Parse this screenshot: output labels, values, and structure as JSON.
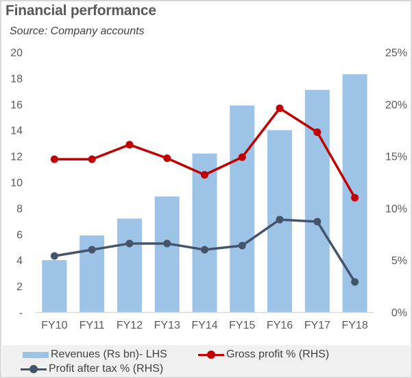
{
  "chart_data": {
    "type": "bar+line",
    "title": "Financial performance",
    "subtitle": "Source: Company accounts",
    "categories": [
      "FY10",
      "FY11",
      "FY12",
      "FY13",
      "FY14",
      "FY15",
      "FY16",
      "FY17",
      "FY18"
    ],
    "series": [
      {
        "name": "Revenues (Rs bn)- LHS",
        "type": "bar",
        "axis": "left",
        "color": "#9dc3e6",
        "values": [
          4.0,
          5.9,
          7.2,
          8.9,
          12.2,
          15.9,
          14.0,
          17.1,
          18.3
        ]
      },
      {
        "name": "Gross profit % (RHS)",
        "type": "line",
        "axis": "right",
        "color": "#c00000",
        "values": [
          14.7,
          14.7,
          16.1,
          14.8,
          13.2,
          14.9,
          19.6,
          17.3,
          11.0
        ]
      },
      {
        "name": "Profit after tax % (RHS)",
        "type": "line",
        "axis": "right",
        "color": "#44546a",
        "values": [
          5.4,
          6.0,
          6.6,
          6.6,
          6.0,
          6.4,
          8.9,
          8.7,
          2.9
        ]
      }
    ],
    "left_axis": {
      "range": [
        0,
        20
      ],
      "ticks": [
        0,
        2,
        4,
        6,
        8,
        10,
        12,
        14,
        16,
        18,
        20
      ],
      "tick_labels": [
        "-",
        "2",
        "4",
        "6",
        "8",
        "10",
        "12",
        "14",
        "16",
        "18",
        "20"
      ]
    },
    "right_axis": {
      "range": [
        0,
        25
      ],
      "ticks": [
        0,
        5,
        10,
        15,
        20,
        25
      ],
      "tick_labels": [
        "0%",
        "5%",
        "10%",
        "15%",
        "20%",
        "25%"
      ]
    },
    "xlabel": "",
    "ylabel": "",
    "grid": false,
    "legend_position": "bottom"
  },
  "legend": {
    "items": [
      {
        "label": "Revenues (Rs bn)- LHS",
        "kind": "bar",
        "color": "#9dc3e6"
      },
      {
        "label": "Gross profit % (RHS)",
        "kind": "line-marker",
        "color": "#c00000"
      },
      {
        "label": "Profit after tax % (RHS)",
        "kind": "line-marker",
        "color": "#44546a"
      }
    ]
  }
}
